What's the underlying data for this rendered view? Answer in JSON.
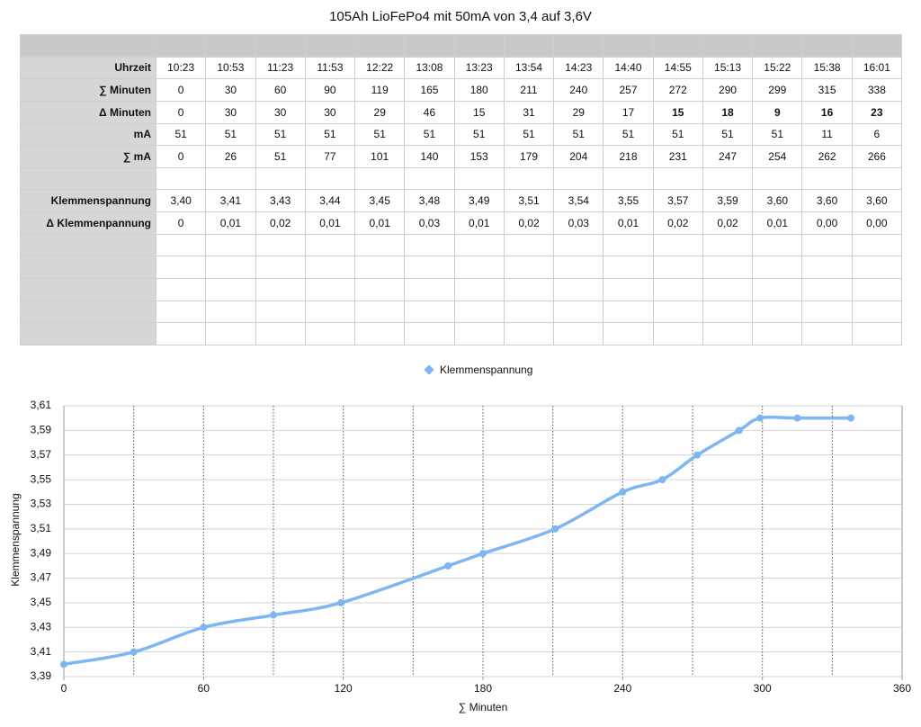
{
  "title": "105Ah LioFePo4 mit 50mA von 3,4 auf 3,6V",
  "table": {
    "rows": [
      {
        "label": "Uhrzeit",
        "cells": [
          "10:23",
          "10:53",
          "11:23",
          "11:53",
          "12:22",
          "13:08",
          "13:23",
          "13:54",
          "14:23",
          "14:40",
          "14:55",
          "15:13",
          "15:22",
          "15:38",
          "16:01"
        ]
      },
      {
        "label": "∑ Minuten",
        "cells": [
          0,
          30,
          60,
          90,
          119,
          165,
          180,
          211,
          240,
          257,
          272,
          290,
          299,
          315,
          338
        ]
      },
      {
        "label": "Δ Minuten",
        "cells": [
          0,
          30,
          30,
          30,
          29,
          46,
          15,
          31,
          29,
          17,
          15,
          18,
          9,
          16,
          23
        ]
      },
      {
        "label": "mA",
        "cells": [
          51,
          51,
          51,
          51,
          51,
          51,
          51,
          51,
          51,
          51,
          51,
          51,
          51,
          11,
          6
        ]
      },
      {
        "label": "∑ mA",
        "cells": [
          0,
          26,
          51,
          77,
          101,
          140,
          153,
          179,
          204,
          218,
          231,
          247,
          254,
          262,
          266
        ]
      },
      {
        "label": "Klemmenspannung",
        "cells": [
          "3,40",
          "3,41",
          "3,43",
          "3,44",
          "3,45",
          "3,48",
          "3,49",
          "3,51",
          "3,54",
          "3,55",
          "3,57",
          "3,59",
          "3,60",
          "3,60",
          "3,60"
        ]
      },
      {
        "label": "Δ Klemmenpannung",
        "cells": [
          "0",
          "0,01",
          "0,02",
          "0,01",
          "0,01",
          "0,03",
          "0,01",
          "0,02",
          "0,03",
          "0,01",
          "0,02",
          "0,02",
          "0,01",
          "0,00",
          "0,00"
        ]
      }
    ]
  },
  "chart_data": {
    "type": "line",
    "x_label": "∑ Minuten",
    "y_label": "Klemmenspannung",
    "x": [
      0,
      30,
      60,
      90,
      119,
      165,
      180,
      211,
      240,
      257,
      272,
      290,
      299,
      315,
      338
    ],
    "series": [
      {
        "name": "Klemmenspannung",
        "color": "#7db6f0",
        "values": [
          3.4,
          3.41,
          3.43,
          3.44,
          3.45,
          3.48,
          3.49,
          3.51,
          3.54,
          3.55,
          3.57,
          3.59,
          3.6,
          3.6,
          3.6
        ]
      }
    ],
    "xlim": [
      0,
      360
    ],
    "xticks": [
      0,
      60,
      120,
      180,
      240,
      300,
      360
    ],
    "x_gridlines": [
      30,
      60,
      90,
      120,
      150,
      180,
      210,
      240,
      270,
      300,
      330
    ],
    "ylim": [
      3.39,
      3.61
    ],
    "yticks": [
      {
        "value": 3.39,
        "label": "3,39"
      },
      {
        "value": 3.41,
        "label": "3,41"
      },
      {
        "value": 3.43,
        "label": "3,43"
      },
      {
        "value": 3.45,
        "label": "3,45"
      },
      {
        "value": 3.47,
        "label": "3,47"
      },
      {
        "value": 3.49,
        "label": "3,49"
      },
      {
        "value": 3.51,
        "label": "3,51"
      },
      {
        "value": 3.53,
        "label": "3,53"
      },
      {
        "value": 3.55,
        "label": "3,55"
      },
      {
        "value": 3.57,
        "label": "3,57"
      },
      {
        "value": 3.59,
        "label": "3,59"
      },
      {
        "value": 3.61,
        "label": "3,61"
      }
    ],
    "grid": true,
    "legend": "top"
  }
}
